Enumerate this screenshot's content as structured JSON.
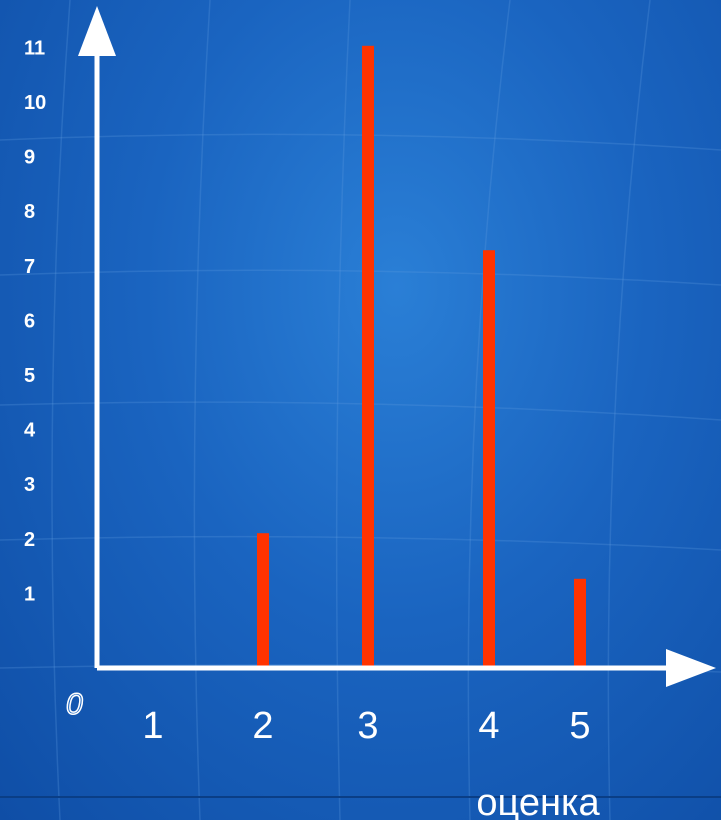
{
  "chart_data": {
    "type": "bar",
    "categories": [
      "1",
      "2",
      "3",
      "4",
      "5"
    ],
    "values": [
      0,
      3,
      12,
      8,
      2
    ],
    "y_ticks": [
      "1",
      "2",
      "3",
      "4",
      "5",
      "6",
      "7",
      "8",
      "9",
      "10",
      "11"
    ],
    "xlabel": "оценка",
    "ylabel": "",
    "origin_label": "0",
    "ylim": [
      0,
      12
    ],
    "grid": false,
    "colors": {
      "bar": "#ff3300",
      "axis": "#ffffff",
      "background": "#1a64c0"
    }
  }
}
